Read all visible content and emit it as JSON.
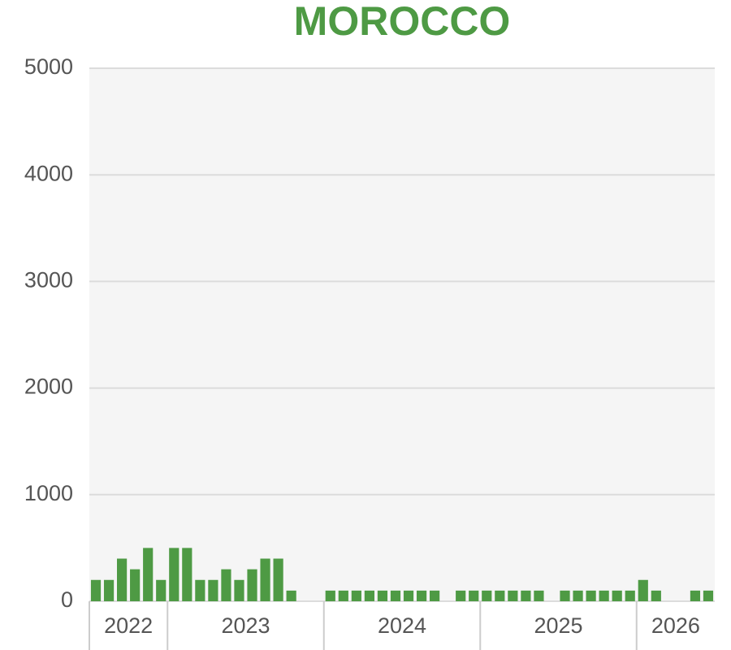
{
  "chart_data": {
    "type": "bar",
    "title": "MOROCCO",
    "color": "#4e9a44",
    "categories": [
      "2022",
      "2022",
      "2022",
      "2022",
      "2022",
      "2022",
      "2023",
      "2023",
      "2023",
      "2023",
      "2023",
      "2023",
      "2023",
      "2023",
      "2023",
      "2023",
      "2023",
      "2023",
      "2024",
      "2024",
      "2024",
      "2024",
      "2024",
      "2024",
      "2024",
      "2024",
      "2024",
      "2024",
      "2024",
      "2024",
      "2025",
      "2025",
      "2025",
      "2025",
      "2025",
      "2025",
      "2025",
      "2025",
      "2025",
      "2025",
      "2025",
      "2025",
      "2026",
      "2026",
      "2026",
      "2026",
      "2026",
      "2026"
    ],
    "values": [
      200,
      200,
      400,
      300,
      500,
      200,
      500,
      500,
      200,
      200,
      300,
      200,
      300,
      400,
      400,
      100,
      0,
      0,
      100,
      100,
      100,
      100,
      100,
      100,
      100,
      100,
      100,
      0,
      100,
      100,
      100,
      100,
      100,
      100,
      100,
      0,
      100,
      100,
      100,
      100,
      100,
      100,
      200,
      100,
      0,
      0,
      100,
      100
    ],
    "ylim": [
      0,
      5000
    ],
    "yticks": [
      0,
      1000,
      2000,
      3000,
      4000,
      5000
    ],
    "grid": true
  }
}
